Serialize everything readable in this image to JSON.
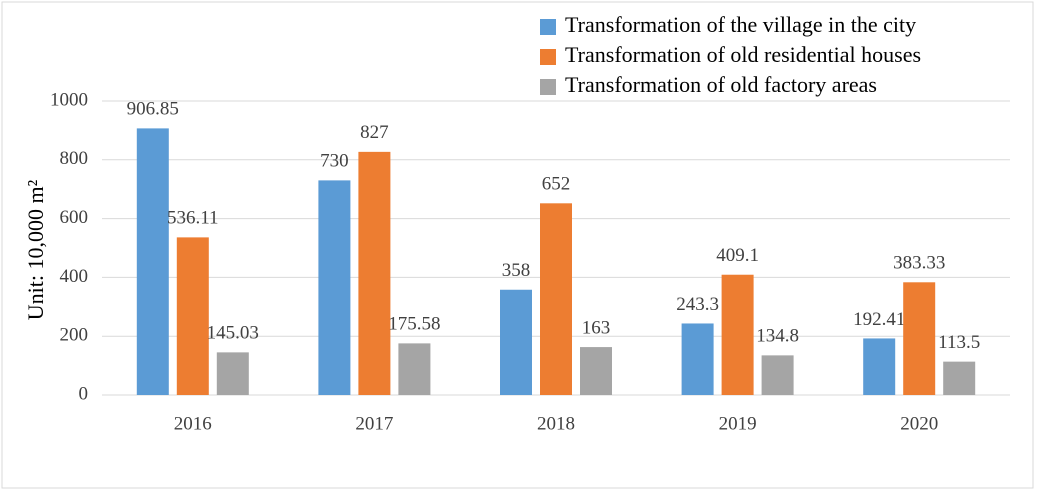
{
  "chart_data": {
    "type": "bar",
    "y_label": "Unit: 10,000 m²",
    "categories": [
      "2016",
      "2017",
      "2018",
      "2019",
      "2020"
    ],
    "series": [
      {
        "name": "Transformation of the village in the city",
        "color": "#5b9bd5",
        "values": [
          906.85,
          730,
          358,
          243.3,
          192.41
        ]
      },
      {
        "name": "Transformation of old residential houses",
        "color": "#ed7d31",
        "values": [
          536.11,
          827,
          652,
          409.1,
          383.33
        ]
      },
      {
        "name": "Transformation of old factory areas",
        "color": "#a5a5a5",
        "values": [
          145.03,
          175.58,
          163,
          134.8,
          113.5
        ]
      }
    ],
    "ylim": [
      0,
      1000
    ],
    "yticks": [
      0,
      200,
      400,
      600,
      800,
      1000
    ],
    "grid": true,
    "legend": "top-right"
  }
}
